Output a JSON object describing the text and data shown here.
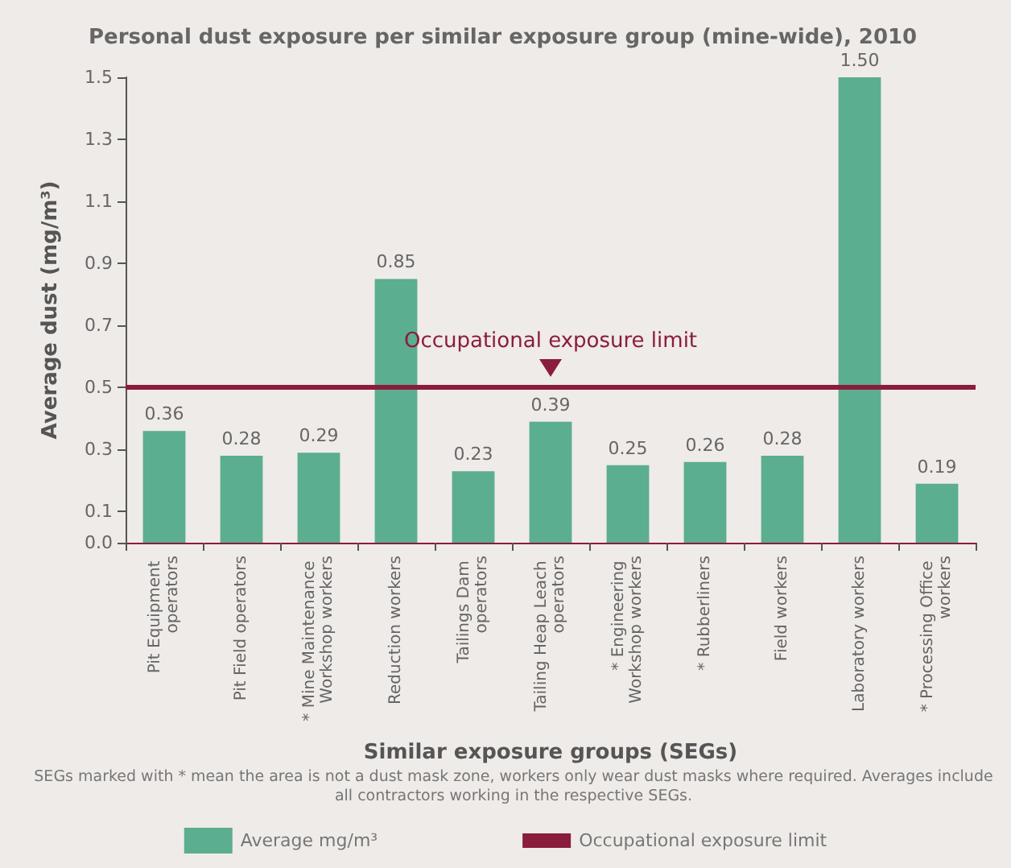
{
  "chart_data": {
    "type": "bar",
    "title": "Personal dust exposure per similar exposure group (mine-wide), 2010",
    "xlabel": "Similar exposure groups (SEGs)",
    "ylabel": "Average dust (mg/m³)",
    "categories": [
      "Pit Equipment operators",
      "Pit Field operators",
      "* Mine Maintenance Workshop workers",
      "Reduction workers",
      "Tailings Dam operators",
      "Tailing Heap Leach operators",
      "* Engineering Workshop workers",
      "* Rubberliners",
      "Field workers",
      "Laboratory workers",
      "* Processing Office workers"
    ],
    "series": [
      {
        "name": "Average mg/m³",
        "color": "#5bae8f",
        "values": [
          0.36,
          0.28,
          0.29,
          0.85,
          0.23,
          0.39,
          0.25,
          0.26,
          0.28,
          1.5,
          0.19
        ],
        "value_labels": [
          "0.36",
          "0.28",
          "0.29",
          "0.85",
          "0.23",
          "0.39",
          "0.25",
          "0.26",
          "0.28",
          "1.50",
          "0.19"
        ]
      }
    ],
    "ylim": [
      0,
      1.5
    ],
    "yticks": [
      {
        "value": 0,
        "label": "0.0"
      },
      0.1,
      0.3,
      0.5,
      0.7,
      0.9,
      1.1,
      1.3,
      1.5
    ],
    "ref_lines": [
      {
        "axis": "y",
        "value": 0.5,
        "label": "Occupational exposure limit",
        "color": "#8a1c3c"
      }
    ],
    "annotations": [
      "SEGs marked with * mean the area is not a dust mask zone, workers only wear dust masks where required. Averages include all contractors working in the respective SEGs."
    ],
    "grid": false,
    "legend": "bottom"
  }
}
